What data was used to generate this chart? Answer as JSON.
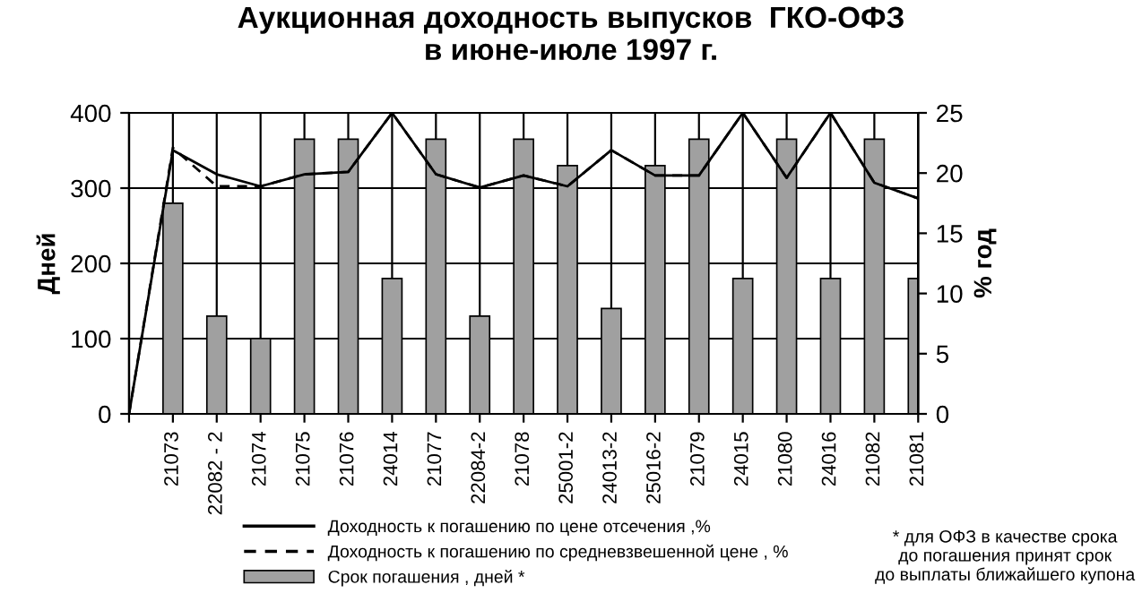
{
  "chart_data": {
    "type": "bar",
    "title": "Аукционная доходность выпусков  ГКО-ОФЗ\nв июне-июле 1997 г.",
    "ylabel": "Дней",
    "y2label": "% год",
    "categories": [
      null,
      "21073",
      "22082 - 2",
      "21074",
      "21075",
      "21076",
      "24014",
      "21077",
      "22084-2",
      "21078",
      "25001-2",
      "24013-2",
      "25016-2",
      "21079",
      "24015",
      "21080",
      "24016",
      "21082",
      "21081"
    ],
    "series": [
      {
        "name": "Доходность к погашению по цене отсечения ,%",
        "type": "line",
        "axis": "y2",
        "color": "#000000",
        "line_style": "solid",
        "values": [
          0,
          21.9,
          19.9,
          18.9,
          19.9,
          20.1,
          25,
          19.9,
          18.8,
          19.8,
          18.9,
          21.9,
          19.8,
          19.8,
          25,
          19.6,
          25,
          19.2,
          17.9
        ]
      },
      {
        "name": "Доходность к погашению по средневзвешенной цене , %",
        "type": "line",
        "axis": "y2",
        "color": "#000000",
        "line_style": "dashed",
        "values": [
          0,
          22.1,
          18.9,
          18.9,
          19.9,
          20.1,
          25,
          19.9,
          18.8,
          19.8,
          18.9,
          21.9,
          19.8,
          19.8,
          25,
          19.6,
          25,
          19.2,
          17.9
        ]
      },
      {
        "name": "Срок погашения , дней *",
        "axis": "y",
        "color": "#a0a0a0",
        "values": [
          null,
          280,
          130,
          100,
          365,
          365,
          180,
          365,
          130,
          365,
          330,
          140,
          330,
          365,
          180,
          365,
          180,
          365,
          180
        ]
      }
    ],
    "ylim": [
      0,
      400
    ],
    "yticks": [
      0,
      100,
      200,
      300,
      400
    ],
    "y2lim": [
      0,
      25
    ],
    "y2ticks": [
      0,
      5,
      10,
      15,
      20,
      25
    ],
    "grid": true,
    "legend": "bottom left",
    "annotations": [
      "* для ОФЗ в качестве срока\nдо погашения принят срок\nдо выплаты ближайшего купона"
    ]
  }
}
